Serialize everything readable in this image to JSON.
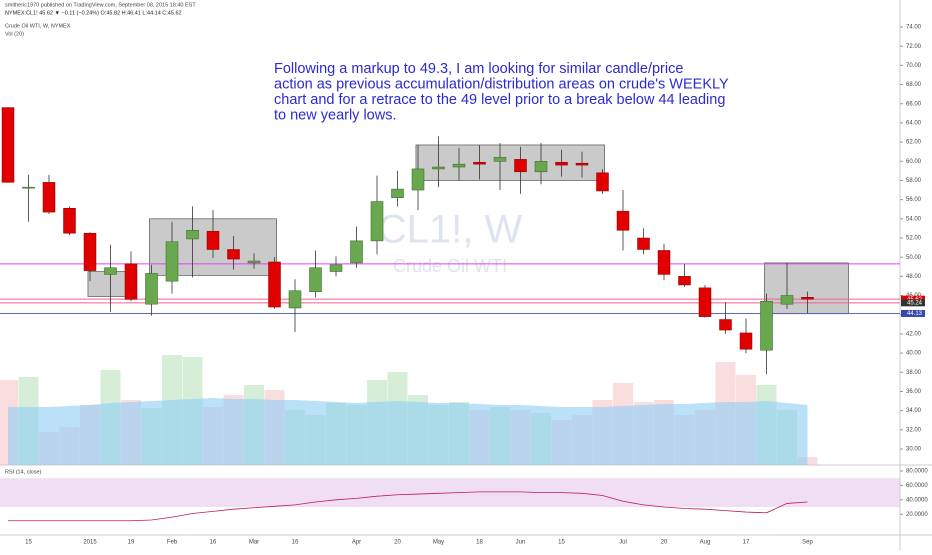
{
  "chart_data": {
    "type": "candlestick",
    "header": "smitheric1970 published on TradingView.com, September 08, 2015 18:40 EST",
    "quote": "NYMEX:CL1! 45.62 ▼ −0.11 (−0.24%) O:45.82 H:46.41 L:44.14 C:45.62",
    "title": "Crude Oil WTI, W, NYMEX",
    "volume_title": "Vol (20)",
    "watermark": "CL1!, W",
    "watermark_sub": "Crude Oil WTI",
    "annotation": [
      "Following a markup to 49.3, I am looking for similar candle/price",
      "action as previous accumulation/distribution areas on crude's WEEKLY",
      "chart and for a retrace to the 49 level prior to a break below 44 leading",
      "to new yearly lows."
    ],
    "categories": [
      null,
      "15",
      null,
      null,
      "2015",
      null,
      "19",
      null,
      "Feb",
      null,
      "16",
      null,
      "Mar",
      null,
      "16",
      null,
      null,
      "Apr",
      null,
      "20",
      null,
      "May",
      null,
      "18",
      null,
      "Jun",
      null,
      "15",
      null,
      null,
      "Jul",
      null,
      "20",
      null,
      "Aug",
      null,
      "17",
      null,
      null,
      "Sep"
    ],
    "open": [
      65.6,
      57.2,
      57.8,
      55.1,
      52.5,
      48.2,
      49.3,
      45.1,
      47.5,
      51.9,
      52.7,
      50.8,
      49.4,
      49.5,
      44.7,
      46.4,
      48.5,
      49.4,
      51.7,
      56.2,
      57.0,
      59.2,
      59.4,
      59.9,
      60.0,
      60.2,
      58.9,
      59.9,
      59.8,
      58.8,
      54.8,
      52.0,
      50.7,
      48.0,
      46.8,
      43.5,
      42.1,
      40.3,
      45.1,
      45.82
    ],
    "high": [
      65.6,
      58.6,
      58.6,
      55.3,
      52.6,
      51.3,
      50.6,
      49.2,
      53.7,
      55.3,
      54.9,
      52.2,
      50.4,
      50.0,
      47.7,
      50.7,
      50.1,
      53.2,
      58.5,
      59.0,
      61.7,
      62.6,
      61.4,
      61.7,
      61.9,
      61.5,
      61.9,
      61.2,
      61.0,
      59.2,
      57.0,
      53.0,
      51.4,
      49.3,
      47.1,
      45.3,
      43.6,
      46.2,
      49.4,
      46.41
    ],
    "low": [
      57.8,
      53.7,
      54.5,
      52.3,
      47.5,
      44.3,
      45.4,
      43.9,
      46.2,
      47.9,
      49.9,
      48.7,
      48.8,
      44.6,
      42.2,
      45.8,
      48.0,
      48.9,
      50.3,
      55.3,
      54.9,
      57.3,
      58.0,
      58.1,
      57.0,
      56.6,
      57.6,
      58.4,
      58.3,
      56.6,
      50.7,
      50.3,
      47.6,
      46.9,
      43.7,
      42.0,
      40.0,
      37.8,
      44.6,
      44.14
    ],
    "close": [
      57.8,
      57.3,
      54.7,
      52.5,
      48.6,
      48.9,
      45.6,
      48.3,
      51.6,
      52.8,
      50.8,
      49.8,
      49.6,
      44.8,
      46.5,
      48.9,
      49.2,
      51.7,
      55.8,
      57.1,
      59.2,
      59.4,
      59.7,
      59.7,
      60.4,
      58.9,
      60.0,
      59.6,
      59.6,
      56.9,
      52.8,
      50.8,
      48.2,
      47.1,
      43.8,
      42.4,
      40.4,
      45.4,
      46.0,
      45.62
    ],
    "up_color": "#6aa84f",
    "down_color": "#e00000",
    "volume": [
      85,
      88,
      33,
      38,
      60,
      95,
      65,
      57,
      110,
      108,
      58,
      70,
      80,
      75,
      55,
      50,
      62,
      60,
      85,
      93,
      70,
      60,
      63,
      55,
      58,
      55,
      52,
      45,
      50,
      65,
      82,
      63,
      65,
      50,
      55,
      103,
      90,
      80,
      55,
      8
    ],
    "volume_ma": [
      58,
      58,
      58,
      59,
      60,
      62,
      63,
      64,
      65,
      66,
      67,
      66,
      66,
      65,
      65,
      64,
      63,
      62,
      63,
      64,
      63,
      62,
      62,
      61,
      60,
      60,
      59,
      58,
      58,
      58,
      59,
      60,
      61,
      61,
      62,
      63,
      63,
      64,
      62,
      60
    ],
    "volume_ma_color": "#8ecdf5",
    "ylim": [
      28.33,
      74.73
    ],
    "yticks": [
      {
        "value": 30,
        "label": "30.00"
      },
      {
        "value": 32,
        "label": "32.00"
      },
      {
        "value": 34,
        "label": "34.00"
      },
      {
        "value": 36,
        "label": "36.00"
      },
      {
        "value": 38,
        "label": "38.00"
      },
      {
        "value": 40,
        "label": "40.00"
      },
      {
        "value": 42,
        "label": "42.00"
      },
      {
        "value": 44,
        "label": "44.00"
      },
      {
        "value": 46,
        "label": "46.00"
      },
      {
        "value": 48,
        "label": "48.00"
      },
      {
        "value": 50,
        "label": "50.00"
      },
      {
        "value": 52,
        "label": "52.00"
      },
      {
        "value": 54,
        "label": "54.00"
      },
      {
        "value": 56,
        "label": "56.00"
      },
      {
        "value": 58,
        "label": "58.00"
      },
      {
        "value": 60,
        "label": "60.00"
      },
      {
        "value": 62,
        "label": "62.00"
      },
      {
        "value": 64,
        "label": "64.00"
      },
      {
        "value": 66,
        "label": "66.00"
      },
      {
        "value": 68,
        "label": "68.00"
      },
      {
        "value": 70,
        "label": "70.00"
      },
      {
        "value": 72,
        "label": "72.00"
      },
      {
        "value": 74,
        "label": "74.00"
      }
    ],
    "hlines": [
      {
        "value": 49.3,
        "color": "#e040fb"
      },
      {
        "value": 45.62,
        "color": "#f06292",
        "tag_color": "#e00000"
      },
      {
        "value": 45.24,
        "color": "#f06292",
        "tag_color": "#333333"
      },
      {
        "value": 44.13,
        "color": "#5c6bc0",
        "tag_color": "#3949ab"
      }
    ],
    "boxes": [
      {
        "x": [
          3.9,
          6.1
        ],
        "y": [
          45.9,
          48.5
        ]
      },
      {
        "x": [
          6.9,
          13.1
        ],
        "y": [
          48.1,
          54.0
        ]
      },
      {
        "x": [
          19.9,
          29.1
        ],
        "y": [
          58.0,
          61.7
        ]
      },
      {
        "x": [
          36.9,
          41.0
        ],
        "y": [
          44.1,
          49.4
        ]
      }
    ],
    "rsi": {
      "title": "RSI (14, close)",
      "color": "#c2185b",
      "band": [
        30,
        70
      ],
      "ylim": [
        -8.8,
        85.5
      ],
      "yticks": [
        {
          "value": 20,
          "label": "20.0000"
        },
        {
          "value": 40,
          "label": "40.0000"
        },
        {
          "value": 60,
          "label": "60.0000"
        },
        {
          "value": 80,
          "label": "80.0000"
        }
      ],
      "values": [
        11,
        11,
        11,
        11,
        11,
        11,
        11,
        12,
        16,
        21,
        24,
        27,
        29,
        31,
        33,
        37,
        40,
        42,
        45,
        47,
        48,
        49,
        50,
        51,
        51,
        51,
        50,
        50,
        49,
        46,
        38,
        33,
        30,
        28,
        27,
        25,
        23,
        22,
        35,
        37
      ]
    }
  }
}
